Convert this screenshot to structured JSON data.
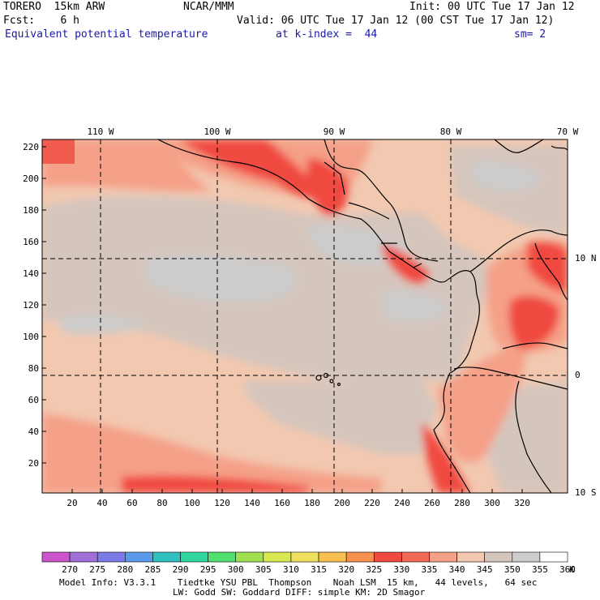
{
  "header": {
    "model": "TORERO  15km ARW",
    "org": "NCAR/MMM",
    "init": "Init: 00 UTC Tue 17 Jan 12",
    "fcst": "Fcst:    6 h",
    "valid": "Valid: 06 UTC Tue 17 Jan 12 (00 CST Tue 17 Jan 12)",
    "field": "Equivalent potential temperature",
    "level": "at k-index =  44",
    "smooth": "sm= 2"
  },
  "map": {
    "lon_labels": [
      "110 W",
      "100 W",
      "90 W",
      "80 W",
      "70 W"
    ],
    "lat_labels": [
      "10 N",
      "0",
      "10 S"
    ],
    "y_ticks": [
      "220",
      "200",
      "180",
      "160",
      "140",
      "120",
      "100",
      "80",
      "60",
      "40",
      "20"
    ],
    "x_ticks": [
      "20",
      "40",
      "60",
      "80",
      "100",
      "120",
      "140",
      "160",
      "180",
      "200",
      "220",
      "240",
      "260",
      "280",
      "300",
      "320"
    ]
  },
  "colorbar": {
    "labels": [
      "270",
      "275",
      "280",
      "285",
      "290",
      "295",
      "300",
      "305",
      "310",
      "315",
      "320",
      "325",
      "330",
      "335",
      "340",
      "345",
      "350",
      "355",
      "360"
    ],
    "unit": "K",
    "colors": [
      "#cc55cc",
      "#a070d8",
      "#7a7ae8",
      "#5a9ae8",
      "#30c0c0",
      "#30d8a0",
      "#50e070",
      "#a0e050",
      "#d8e850",
      "#f0e060",
      "#f8c050",
      "#f89050",
      "#f04a40",
      "#f26a55",
      "#f5a088",
      "#f2c8b0",
      "#d5c6bd",
      "#cccccc",
      "#ffffff"
    ]
  },
  "footer": {
    "line1": "Model Info: V3.3.1    Tiedtke YSU PBL  Thompson    Noah LSM  15 km,   44 levels,   64 sec",
    "line2": "LW: Godd SW: Goddard DIFF: simple KM: 2D Smagor"
  }
}
